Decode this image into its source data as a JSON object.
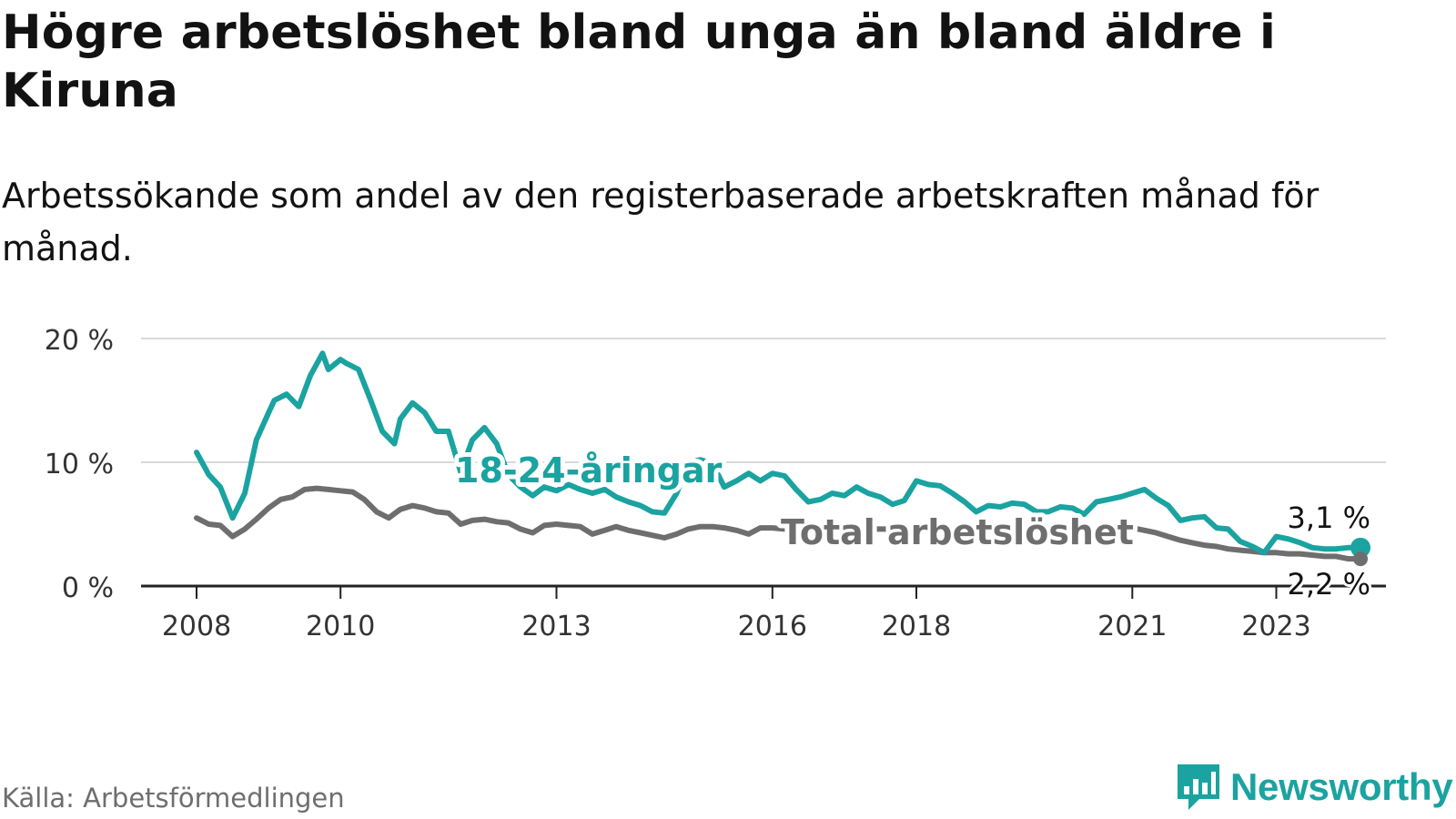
{
  "colors": {
    "youth": "#1aa3a0",
    "total": "#6e6e6e",
    "grid": "#d9d9d9",
    "axis": "#222222",
    "brand": "#1aa3a0"
  },
  "chart_data": {
    "type": "line",
    "title": "Högre arbetslöshet bland unga än bland äldre i Kiruna",
    "subtitle": "Arbetssökande som andel av den registerbaserade arbetskraften månad för månad.",
    "xlabel": "",
    "ylabel": "",
    "xlim": [
      2007.5,
      2025.2
    ],
    "ylim": [
      0,
      20
    ],
    "y_ticks": [
      0,
      10,
      20
    ],
    "y_tick_labels": [
      "0 %",
      "10 %",
      "20 %"
    ],
    "x_ticks": [
      2008,
      2010,
      2013,
      2016,
      2018,
      2021,
      2023
    ],
    "x_tick_labels": [
      "2008",
      "2010",
      "2013",
      "2016",
      "2018",
      "2021",
      "2023"
    ],
    "grid": true,
    "series": [
      {
        "name": "18-24-åringar",
        "label": "18-24-åringar",
        "end_label": "3,1 %",
        "x": [
          2008.0,
          2008.17,
          2008.33,
          2008.5,
          2008.67,
          2008.83,
          2009.0,
          2009.08,
          2009.25,
          2009.42,
          2009.58,
          2009.75,
          2009.83,
          2010.0,
          2010.08,
          2010.25,
          2010.42,
          2010.58,
          2010.75,
          2010.83,
          2011.0,
          2011.17,
          2011.33,
          2011.5,
          2011.67,
          2011.83,
          2012.0,
          2012.17,
          2012.33,
          2012.5,
          2012.67,
          2012.83,
          2013.0,
          2013.17,
          2013.33,
          2013.5,
          2013.67,
          2013.83,
          2014.0,
          2014.17,
          2014.33,
          2014.5,
          2014.67,
          2014.83,
          2015.0,
          2015.17,
          2015.33,
          2015.5,
          2015.67,
          2015.83,
          2016.0,
          2016.17,
          2016.33,
          2016.5,
          2016.67,
          2016.83,
          2017.0,
          2017.17,
          2017.33,
          2017.5,
          2017.67,
          2017.83,
          2018.0,
          2018.17,
          2018.33,
          2018.5,
          2018.67,
          2018.83,
          2019.0,
          2019.17,
          2019.33,
          2019.5,
          2019.67,
          2019.83,
          2020.0,
          2020.17,
          2020.33,
          2020.5,
          2020.67,
          2020.83,
          2021.0,
          2021.17,
          2021.33,
          2021.5,
          2021.67,
          2021.83,
          2022.0,
          2022.17,
          2022.33,
          2022.5,
          2022.67,
          2022.83,
          2023.0,
          2023.17,
          2023.33,
          2023.5,
          2023.67,
          2023.83,
          2024.0,
          2024.17
        ],
        "values": [
          10.8,
          9.0,
          8.0,
          5.5,
          7.5,
          11.8,
          14.0,
          15.0,
          15.5,
          14.5,
          17.0,
          18.8,
          17.5,
          18.3,
          18.0,
          17.5,
          15.0,
          12.5,
          11.5,
          13.5,
          14.8,
          14.0,
          12.5,
          12.5,
          9.2,
          11.8,
          12.8,
          11.5,
          9.0,
          8.0,
          7.3,
          8.0,
          7.7,
          8.2,
          7.8,
          7.5,
          7.8,
          7.2,
          6.8,
          6.5,
          6.0,
          5.9,
          7.5,
          10.0,
          10.2,
          9.9,
          8.0,
          8.5,
          9.1,
          8.5,
          9.1,
          8.9,
          7.8,
          6.8,
          7.0,
          7.5,
          7.3,
          8.0,
          7.5,
          7.2,
          6.6,
          6.9,
          8.5,
          8.2,
          8.1,
          7.5,
          6.8,
          6.0,
          6.5,
          6.4,
          6.7,
          6.6,
          6.0,
          6.0,
          6.4,
          6.3,
          5.8,
          6.8,
          7.0,
          7.2,
          7.5,
          7.8,
          7.1,
          6.5,
          5.3,
          5.5,
          5.6,
          4.7,
          4.6,
          3.6,
          3.2,
          2.7,
          4.0,
          3.8,
          3.5,
          3.1,
          3.0,
          3.0,
          3.1,
          3.1
        ]
      },
      {
        "name": "Total arbetslöshet",
        "label": "Total arbetslöshet",
        "end_label": "2,2 %",
        "x": [
          2008.0,
          2008.17,
          2008.33,
          2008.5,
          2008.67,
          2008.83,
          2009.0,
          2009.17,
          2009.33,
          2009.5,
          2009.67,
          2009.83,
          2010.0,
          2010.17,
          2010.33,
          2010.5,
          2010.67,
          2010.83,
          2011.0,
          2011.17,
          2011.33,
          2011.5,
          2011.67,
          2011.83,
          2012.0,
          2012.17,
          2012.33,
          2012.5,
          2012.67,
          2012.83,
          2013.0,
          2013.17,
          2013.33,
          2013.5,
          2013.67,
          2013.83,
          2014.0,
          2014.17,
          2014.33,
          2014.5,
          2014.67,
          2014.83,
          2015.0,
          2015.17,
          2015.33,
          2015.5,
          2015.67,
          2015.83,
          2016.0,
          2016.17,
          2016.33,
          2016.5,
          2016.67,
          2016.83,
          2017.0,
          2017.17,
          2017.33,
          2017.5,
          2017.67,
          2017.83,
          2018.0,
          2018.17,
          2018.33,
          2018.5,
          2018.67,
          2018.83,
          2019.0,
          2019.17,
          2019.33,
          2019.5,
          2019.67,
          2019.83,
          2020.0,
          2020.17,
          2020.33,
          2020.5,
          2020.67,
          2020.83,
          2021.0,
          2021.17,
          2021.33,
          2021.5,
          2021.67,
          2021.83,
          2022.0,
          2022.17,
          2022.33,
          2022.5,
          2022.67,
          2022.83,
          2023.0,
          2023.17,
          2023.33,
          2023.5,
          2023.67,
          2023.83,
          2024.0,
          2024.17
        ],
        "values": [
          5.5,
          5.0,
          4.9,
          4.0,
          4.6,
          5.4,
          6.3,
          7.0,
          7.2,
          7.8,
          7.9,
          7.8,
          7.7,
          7.6,
          7.0,
          6.0,
          5.5,
          6.2,
          6.5,
          6.3,
          6.0,
          5.9,
          5.0,
          5.3,
          5.4,
          5.2,
          5.1,
          4.6,
          4.3,
          4.9,
          5.0,
          4.9,
          4.8,
          4.2,
          4.5,
          4.8,
          4.5,
          4.3,
          4.1,
          3.9,
          4.2,
          4.6,
          4.8,
          4.8,
          4.7,
          4.5,
          4.2,
          4.7,
          4.7,
          4.6,
          4.5,
          4.6,
          4.7,
          4.6,
          4.6,
          4.6,
          4.6,
          4.6,
          4.6,
          4.6,
          4.6,
          4.6,
          4.6,
          4.5,
          4.5,
          4.5,
          4.5,
          4.5,
          4.5,
          4.5,
          4.5,
          4.5,
          4.6,
          4.6,
          4.6,
          4.6,
          4.6,
          4.7,
          4.7,
          4.5,
          4.3,
          4.0,
          3.7,
          3.5,
          3.3,
          3.2,
          3.0,
          2.9,
          2.8,
          2.7,
          2.7,
          2.6,
          2.6,
          2.5,
          2.4,
          2.4,
          2.2,
          2.2
        ]
      }
    ]
  },
  "source": "Källa: Arbetsförmedlingen",
  "brand": {
    "name": "Newsworthy",
    "icon": "newsworthy-logo-icon"
  }
}
